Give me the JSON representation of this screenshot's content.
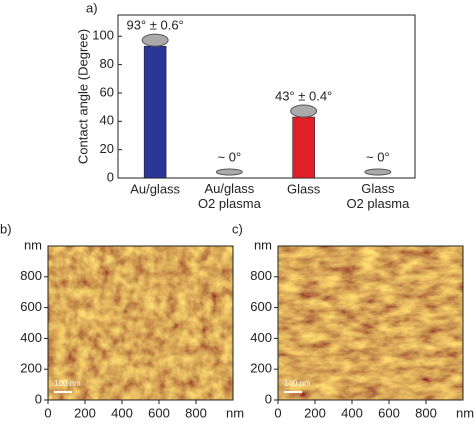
{
  "chart_data": [
    {
      "type": "bar",
      "panel_label": "a)",
      "ylabel": "Contact angle (Degree)",
      "categories": [
        "Au/glass",
        "Au/glass\nO2 plasma",
        "Glass",
        "Glass\nO2 plasma"
      ],
      "values": [
        93,
        0,
        43,
        0
      ],
      "value_labels": [
        "93° ± 0.6°",
        "~ 0°",
        "43° ± 0.4°",
        "~ 0°"
      ],
      "colors": [
        "#2a3796",
        "#2a3796",
        "#e11f26",
        "#e11f26"
      ],
      "ylim": [
        0,
        115
      ],
      "yticks": [
        0,
        20,
        40,
        60,
        80,
        100
      ]
    },
    {
      "type": "afm",
      "panel_label": "b)",
      "xlabel": "nm",
      "ylabel": "nm",
      "scale_bar": "100 nm",
      "xlim": [
        0,
        1000
      ],
      "ylim": [
        0,
        1000
      ],
      "xticks": [
        0,
        200,
        400,
        600,
        800
      ],
      "yticks": [
        0,
        200,
        400,
        600,
        800
      ]
    },
    {
      "type": "afm",
      "panel_label": "c)",
      "xlabel": "nm",
      "ylabel": "nm",
      "scale_bar": "100 nm",
      "xlim": [
        0,
        1000
      ],
      "ylim": [
        0,
        1000
      ],
      "xticks": [
        0,
        200,
        400,
        600,
        800
      ],
      "yticks": [
        0,
        200,
        400,
        600,
        800
      ]
    }
  ]
}
